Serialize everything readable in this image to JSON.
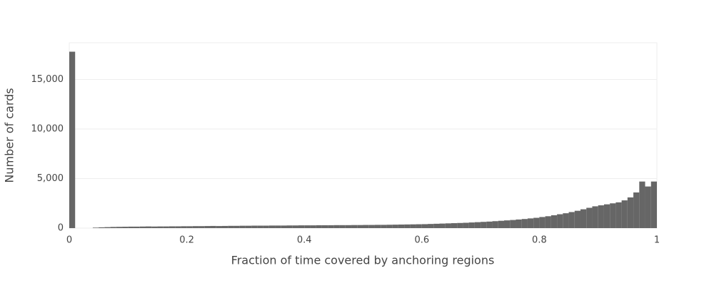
{
  "chart_data": {
    "type": "histogram",
    "xlabel": "Fraction of time covered by anchoring regions",
    "ylabel": "Number of cards",
    "color": "#666666",
    "grid": true,
    "xlim": [
      0,
      1
    ],
    "ylim": [
      0,
      18700
    ],
    "xticks": [
      0,
      0.2,
      0.4,
      0.6,
      0.8,
      1
    ],
    "yticks": [
      0,
      {
        "value": 5000,
        "label": "5,000"
      },
      {
        "value": 10000,
        "label": "10,000"
      },
      {
        "value": 15000,
        "label": "15,000"
      }
    ],
    "bins": [
      0,
      0.01,
      0.02,
      0.03,
      0.04,
      0.05,
      0.06,
      0.07,
      0.08,
      0.09,
      0.1,
      0.11,
      0.12,
      0.13,
      0.14,
      0.15,
      0.16,
      0.17,
      0.18,
      0.19,
      0.2,
      0.21,
      0.22,
      0.23,
      0.24,
      0.25,
      0.26,
      0.27,
      0.28,
      0.29,
      0.3,
      0.31,
      0.32,
      0.33,
      0.34,
      0.35,
      0.36,
      0.37,
      0.38,
      0.39,
      0.4,
      0.41,
      0.42,
      0.43,
      0.44,
      0.45,
      0.46,
      0.47,
      0.48,
      0.49,
      0.5,
      0.51,
      0.52,
      0.53,
      0.54,
      0.55,
      0.56,
      0.57,
      0.58,
      0.59,
      0.6,
      0.61,
      0.62,
      0.63,
      0.64,
      0.65,
      0.66,
      0.67,
      0.68,
      0.69,
      0.7,
      0.71,
      0.72,
      0.73,
      0.74,
      0.75,
      0.76,
      0.77,
      0.78,
      0.79,
      0.8,
      0.81,
      0.82,
      0.83,
      0.84,
      0.85,
      0.86,
      0.87,
      0.88,
      0.89,
      0.9,
      0.91,
      0.92,
      0.93,
      0.94,
      0.95,
      0.96,
      0.97,
      0.98,
      0.99,
      1
    ],
    "values": [
      17800,
      0,
      0,
      0,
      50,
      80,
      100,
      120,
      130,
      140,
      150,
      150,
      160,
      170,
      160,
      170,
      170,
      180,
      180,
      190,
      190,
      200,
      200,
      210,
      220,
      210,
      220,
      230,
      230,
      240,
      240,
      250,
      250,
      250,
      260,
      260,
      260,
      270,
      270,
      280,
      280,
      280,
      290,
      290,
      290,
      300,
      300,
      300,
      310,
      310,
      320,
      320,
      330,
      330,
      340,
      350,
      360,
      370,
      380,
      390,
      400,
      420,
      440,
      460,
      480,
      500,
      520,
      540,
      570,
      600,
      630,
      660,
      700,
      740,
      780,
      820,
      870,
      920,
      980,
      1040,
      1120,
      1200,
      1300,
      1400,
      1500,
      1620,
      1750,
      1900,
      2050,
      2200,
      2300,
      2400,
      2500,
      2600,
      2800,
      3100,
      3600,
      4700,
      4200,
      4700
    ]
  }
}
